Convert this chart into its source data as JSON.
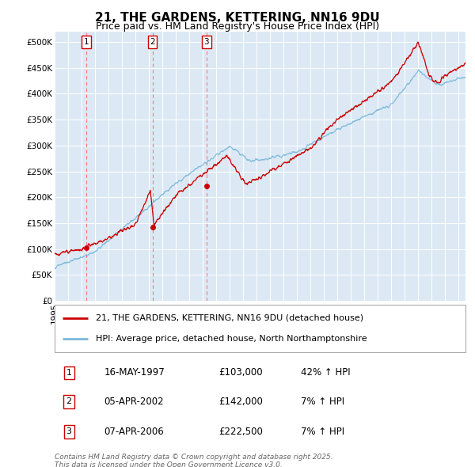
{
  "title": "21, THE GARDENS, KETTERING, NN16 9DU",
  "subtitle": "Price paid vs. HM Land Registry's House Price Index (HPI)",
  "bg_color": "#dce9f5",
  "hpi_color": "#7ab8d9",
  "price_color": "#cc0000",
  "dashed_color": "#ff6666",
  "ylim": [
    0,
    520000
  ],
  "yticks": [
    0,
    50000,
    100000,
    150000,
    200000,
    250000,
    300000,
    350000,
    400000,
    450000,
    500000
  ],
  "ytick_labels": [
    "£0",
    "£50K",
    "£100K",
    "£150K",
    "£200K",
    "£250K",
    "£300K",
    "£350K",
    "£400K",
    "£450K",
    "£500K"
  ],
  "sales": [
    {
      "num": 1,
      "date_x": 1997.37,
      "price": 103000,
      "label": "16-MAY-1997",
      "pct": "42%",
      "dir": "↑"
    },
    {
      "num": 2,
      "date_x": 2002.26,
      "price": 142000,
      "label": "05-APR-2002",
      "pct": "7%",
      "dir": "↑"
    },
    {
      "num": 3,
      "date_x": 2006.26,
      "price": 222500,
      "label": "07-APR-2006",
      "pct": "7%",
      "dir": "↑"
    }
  ],
  "legend_line1": "21, THE GARDENS, KETTERING, NN16 9DU (detached house)",
  "legend_line2": "HPI: Average price, detached house, North Northamptonshire",
  "footer": "Contains HM Land Registry data © Crown copyright and database right 2025.\nThis data is licensed under the Open Government Licence v3.0.",
  "xmin": 1995.0,
  "xmax": 2025.5
}
